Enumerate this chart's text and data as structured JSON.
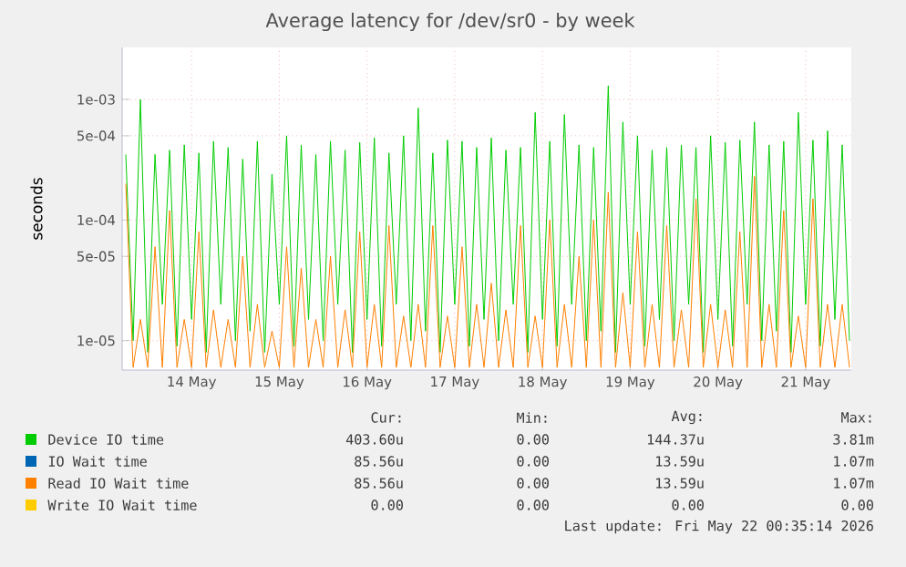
{
  "chart_data": {
    "type": "line",
    "title": "Average latency for /dev/sr0 - by week",
    "ylabel": "seconds",
    "log": "y",
    "grid": true,
    "legend": "bottom",
    "xlim": [
      "2026-05-13T17:00",
      "2026-05-22T00:30"
    ],
    "xticks": [
      {
        "value": "2026-05-14T12:00",
        "label": "14 May"
      },
      {
        "value": "2026-05-15T12:00",
        "label": "15 May"
      },
      {
        "value": "2026-05-16T12:00",
        "label": "16 May"
      },
      {
        "value": "2026-05-17T12:00",
        "label": "17 May"
      },
      {
        "value": "2026-05-18T12:00",
        "label": "18 May"
      },
      {
        "value": "2026-05-19T12:00",
        "label": "19 May"
      },
      {
        "value": "2026-05-20T12:00",
        "label": "20 May"
      },
      {
        "value": "2026-05-21T12:00",
        "label": "21 May"
      }
    ],
    "ylim": [
      5.7e-06,
      0.0027
    ],
    "yticks": [
      {
        "value": 1e-05,
        "label": "1e-05"
      },
      {
        "value": 5e-05,
        "label": "5e-05"
      },
      {
        "value": 0.0001,
        "label": "1e-04"
      },
      {
        "value": 0.0005,
        "label": "5e-04"
      },
      {
        "value": 0.001,
        "label": "1e-03"
      }
    ],
    "x": [
      "2026-05-13T18:00",
      "2026-05-13T20:00",
      "2026-05-13T22:00",
      "2026-05-14T00:00",
      "2026-05-14T02:00",
      "2026-05-14T04:00",
      "2026-05-14T06:00",
      "2026-05-14T08:00",
      "2026-05-14T10:00",
      "2026-05-14T12:00",
      "2026-05-14T14:00",
      "2026-05-14T16:00",
      "2026-05-14T18:00",
      "2026-05-14T20:00",
      "2026-05-14T22:00",
      "2026-05-15T00:00",
      "2026-05-15T02:00",
      "2026-05-15T04:00",
      "2026-05-15T06:00",
      "2026-05-15T08:00",
      "2026-05-15T10:00",
      "2026-05-15T12:00",
      "2026-05-15T14:00",
      "2026-05-15T16:00",
      "2026-05-15T18:00",
      "2026-05-15T20:00",
      "2026-05-15T22:00",
      "2026-05-16T00:00",
      "2026-05-16T02:00",
      "2026-05-16T04:00",
      "2026-05-16T06:00",
      "2026-05-16T08:00",
      "2026-05-16T10:00",
      "2026-05-16T12:00",
      "2026-05-16T14:00",
      "2026-05-16T16:00",
      "2026-05-16T18:00",
      "2026-05-16T20:00",
      "2026-05-16T22:00",
      "2026-05-17T00:00",
      "2026-05-17T02:00",
      "2026-05-17T04:00",
      "2026-05-17T06:00",
      "2026-05-17T08:00",
      "2026-05-17T10:00",
      "2026-05-17T12:00",
      "2026-05-17T14:00",
      "2026-05-17T16:00",
      "2026-05-17T18:00",
      "2026-05-17T20:00",
      "2026-05-17T22:00",
      "2026-05-18T00:00",
      "2026-05-18T02:00",
      "2026-05-18T04:00",
      "2026-05-18T06:00",
      "2026-05-18T08:00",
      "2026-05-18T10:00",
      "2026-05-18T12:00",
      "2026-05-18T14:00",
      "2026-05-18T16:00",
      "2026-05-18T18:00",
      "2026-05-18T20:00",
      "2026-05-18T22:00",
      "2026-05-19T00:00",
      "2026-05-19T02:00",
      "2026-05-19T04:00",
      "2026-05-19T06:00",
      "2026-05-19T08:00",
      "2026-05-19T10:00",
      "2026-05-19T12:00",
      "2026-05-19T14:00",
      "2026-05-19T16:00",
      "2026-05-19T18:00",
      "2026-05-19T20:00",
      "2026-05-19T22:00",
      "2026-05-20T00:00",
      "2026-05-20T02:00",
      "2026-05-20T04:00",
      "2026-05-20T06:00",
      "2026-05-20T08:00",
      "2026-05-20T10:00",
      "2026-05-20T12:00",
      "2026-05-20T14:00",
      "2026-05-20T16:00",
      "2026-05-20T18:00",
      "2026-05-20T20:00",
      "2026-05-20T22:00",
      "2026-05-21T00:00",
      "2026-05-21T02:00",
      "2026-05-21T04:00",
      "2026-05-21T06:00",
      "2026-05-21T08:00",
      "2026-05-21T10:00",
      "2026-05-21T12:00",
      "2026-05-21T14:00",
      "2026-05-21T16:00",
      "2026-05-21T18:00",
      "2026-05-21T20:00",
      "2026-05-21T22:00",
      "2026-05-22T00:00"
    ],
    "series": [
      {
        "name": "Device IO time",
        "color": "#00cc00",
        "values": [
          0.00035,
          1e-05,
          0.001,
          8e-06,
          0.00035,
          2e-05,
          0.00038,
          9e-06,
          0.00042,
          1.5e-05,
          0.00036,
          8e-06,
          0.00045,
          2e-05,
          0.0004,
          1e-05,
          0.00032,
          1.2e-05,
          0.00045,
          8e-06,
          0.00024,
          2e-05,
          0.0005,
          9e-06,
          0.00042,
          1.5e-05,
          0.00035,
          1e-05,
          0.00045,
          2e-05,
          0.00038,
          8e-06,
          0.00044,
          1.5e-05,
          0.00048,
          9e-06,
          0.00036,
          2e-05,
          0.0005,
          1e-05,
          0.00085,
          1.2e-05,
          0.00036,
          8e-06,
          0.00046,
          2e-05,
          0.00045,
          9e-06,
          0.0004,
          1.5e-05,
          0.00048,
          1e-05,
          0.00038,
          2e-05,
          0.0004,
          8e-06,
          0.00078,
          1.5e-05,
          0.00045,
          9e-06,
          0.00075,
          2e-05,
          0.00042,
          1e-05,
          0.0004,
          1.2e-05,
          0.0013,
          8e-06,
          0.00065,
          2e-05,
          0.0005,
          9e-06,
          0.00038,
          1.5e-05,
          0.0004,
          1e-05,
          0.00042,
          2e-05,
          0.0004,
          8e-06,
          0.0005,
          1.5e-05,
          0.00044,
          9e-06,
          0.00046,
          2e-05,
          0.00065,
          1e-05,
          0.00042,
          1.2e-05,
          0.00045,
          8e-06,
          0.00078,
          2e-05,
          0.00046,
          9e-06,
          0.00055,
          1.5e-05,
          0.00042,
          1e-05
        ]
      },
      {
        "name": "IO Wait time",
        "color": "#0066b3",
        "values": [
          null,
          null,
          null,
          null,
          null,
          null,
          null,
          null,
          null,
          null,
          null,
          null,
          null,
          null,
          null,
          null,
          null,
          null,
          null,
          null,
          null,
          null,
          null,
          null,
          null,
          null,
          null,
          null,
          null,
          null,
          null,
          null,
          null,
          null,
          null,
          null,
          null,
          null,
          null,
          null,
          null,
          null,
          null,
          null,
          null,
          null,
          null,
          null,
          null,
          null,
          null,
          null,
          null,
          null,
          null,
          null,
          null,
          null,
          null,
          null,
          null,
          null,
          null,
          null,
          null,
          null,
          null,
          null,
          null,
          null,
          null,
          null,
          null,
          null,
          null,
          null,
          null,
          null,
          null,
          null,
          null,
          null,
          null,
          null,
          null,
          null,
          null,
          null,
          null,
          null,
          null,
          null,
          null,
          null,
          null,
          null,
          null,
          null,
          null,
          null
        ]
      },
      {
        "name": "Read IO Wait time",
        "color": "#ff8000",
        "values": [
          0.0002,
          6e-06,
          1.5e-05,
          6e-06,
          6e-05,
          6e-06,
          0.00012,
          6e-06,
          1.5e-05,
          6e-06,
          8e-05,
          6e-06,
          1.8e-05,
          6e-06,
          1.5e-05,
          6e-06,
          5e-05,
          6e-06,
          2e-05,
          6e-06,
          1.2e-05,
          6e-06,
          6e-05,
          6e-06,
          4e-05,
          6e-06,
          1.5e-05,
          6e-06,
          5e-05,
          6e-06,
          1.8e-05,
          6e-06,
          8e-05,
          6e-06,
          2e-05,
          6e-06,
          9e-05,
          6e-06,
          1.6e-05,
          6e-06,
          2e-05,
          6e-06,
          9e-05,
          6e-06,
          1.6e-05,
          6e-06,
          6e-05,
          6e-06,
          2e-05,
          6e-06,
          3e-05,
          6e-06,
          1.8e-05,
          6e-06,
          9e-05,
          6e-06,
          1.6e-05,
          6e-06,
          0.0001,
          6e-06,
          2e-05,
          6e-06,
          5e-05,
          6e-06,
          0.0001,
          6e-06,
          0.00017,
          6e-06,
          2.5e-05,
          6e-06,
          8e-05,
          6e-06,
          2e-05,
          6e-06,
          9e-05,
          6e-06,
          1.8e-05,
          6e-06,
          0.00015,
          6e-06,
          2e-05,
          6e-06,
          1.8e-05,
          6e-06,
          8e-05,
          6e-06,
          0.00023,
          6e-06,
          2e-05,
          6e-06,
          0.00012,
          6e-06,
          1.6e-05,
          6e-06,
          0.00015,
          6e-06,
          2e-05,
          6e-06,
          2e-05,
          6e-06
        ]
      },
      {
        "name": "Write IO Wait time",
        "color": "#ffcc00",
        "values": [
          null,
          null,
          null,
          null,
          null,
          null,
          null,
          null,
          null,
          null,
          null,
          null,
          null,
          null,
          null,
          null,
          null,
          null,
          null,
          null,
          null,
          null,
          null,
          null,
          null,
          null,
          null,
          null,
          null,
          null,
          null,
          null,
          null,
          null,
          null,
          null,
          null,
          null,
          null,
          null,
          null,
          null,
          null,
          null,
          null,
          null,
          null,
          null,
          null,
          null,
          null,
          null,
          null,
          null,
          null,
          null,
          null,
          null,
          null,
          null,
          null,
          null,
          null,
          null,
          null,
          null,
          null,
          null,
          null,
          null,
          null,
          null,
          null,
          null,
          null,
          null,
          null,
          null,
          null,
          null,
          null,
          null,
          null,
          null,
          null,
          null,
          null,
          null,
          null,
          null,
          null,
          null,
          null,
          null,
          null,
          null,
          null,
          null,
          null,
          null
        ]
      }
    ],
    "annotations": [
      "Cur:",
      "Min:",
      "Avg:",
      "Max:",
      "403.60u",
      "0.00",
      "144.37u",
      "3.81m",
      "85.56u",
      "0.00",
      "13.59u",
      "1.07m",
      "85.56u",
      "0.00",
      "13.59u",
      "1.07m",
      "0.00",
      "0.00",
      "0.00",
      "0.00",
      "Last update: Fri May 22 00:35:14 2026"
    ]
  }
}
